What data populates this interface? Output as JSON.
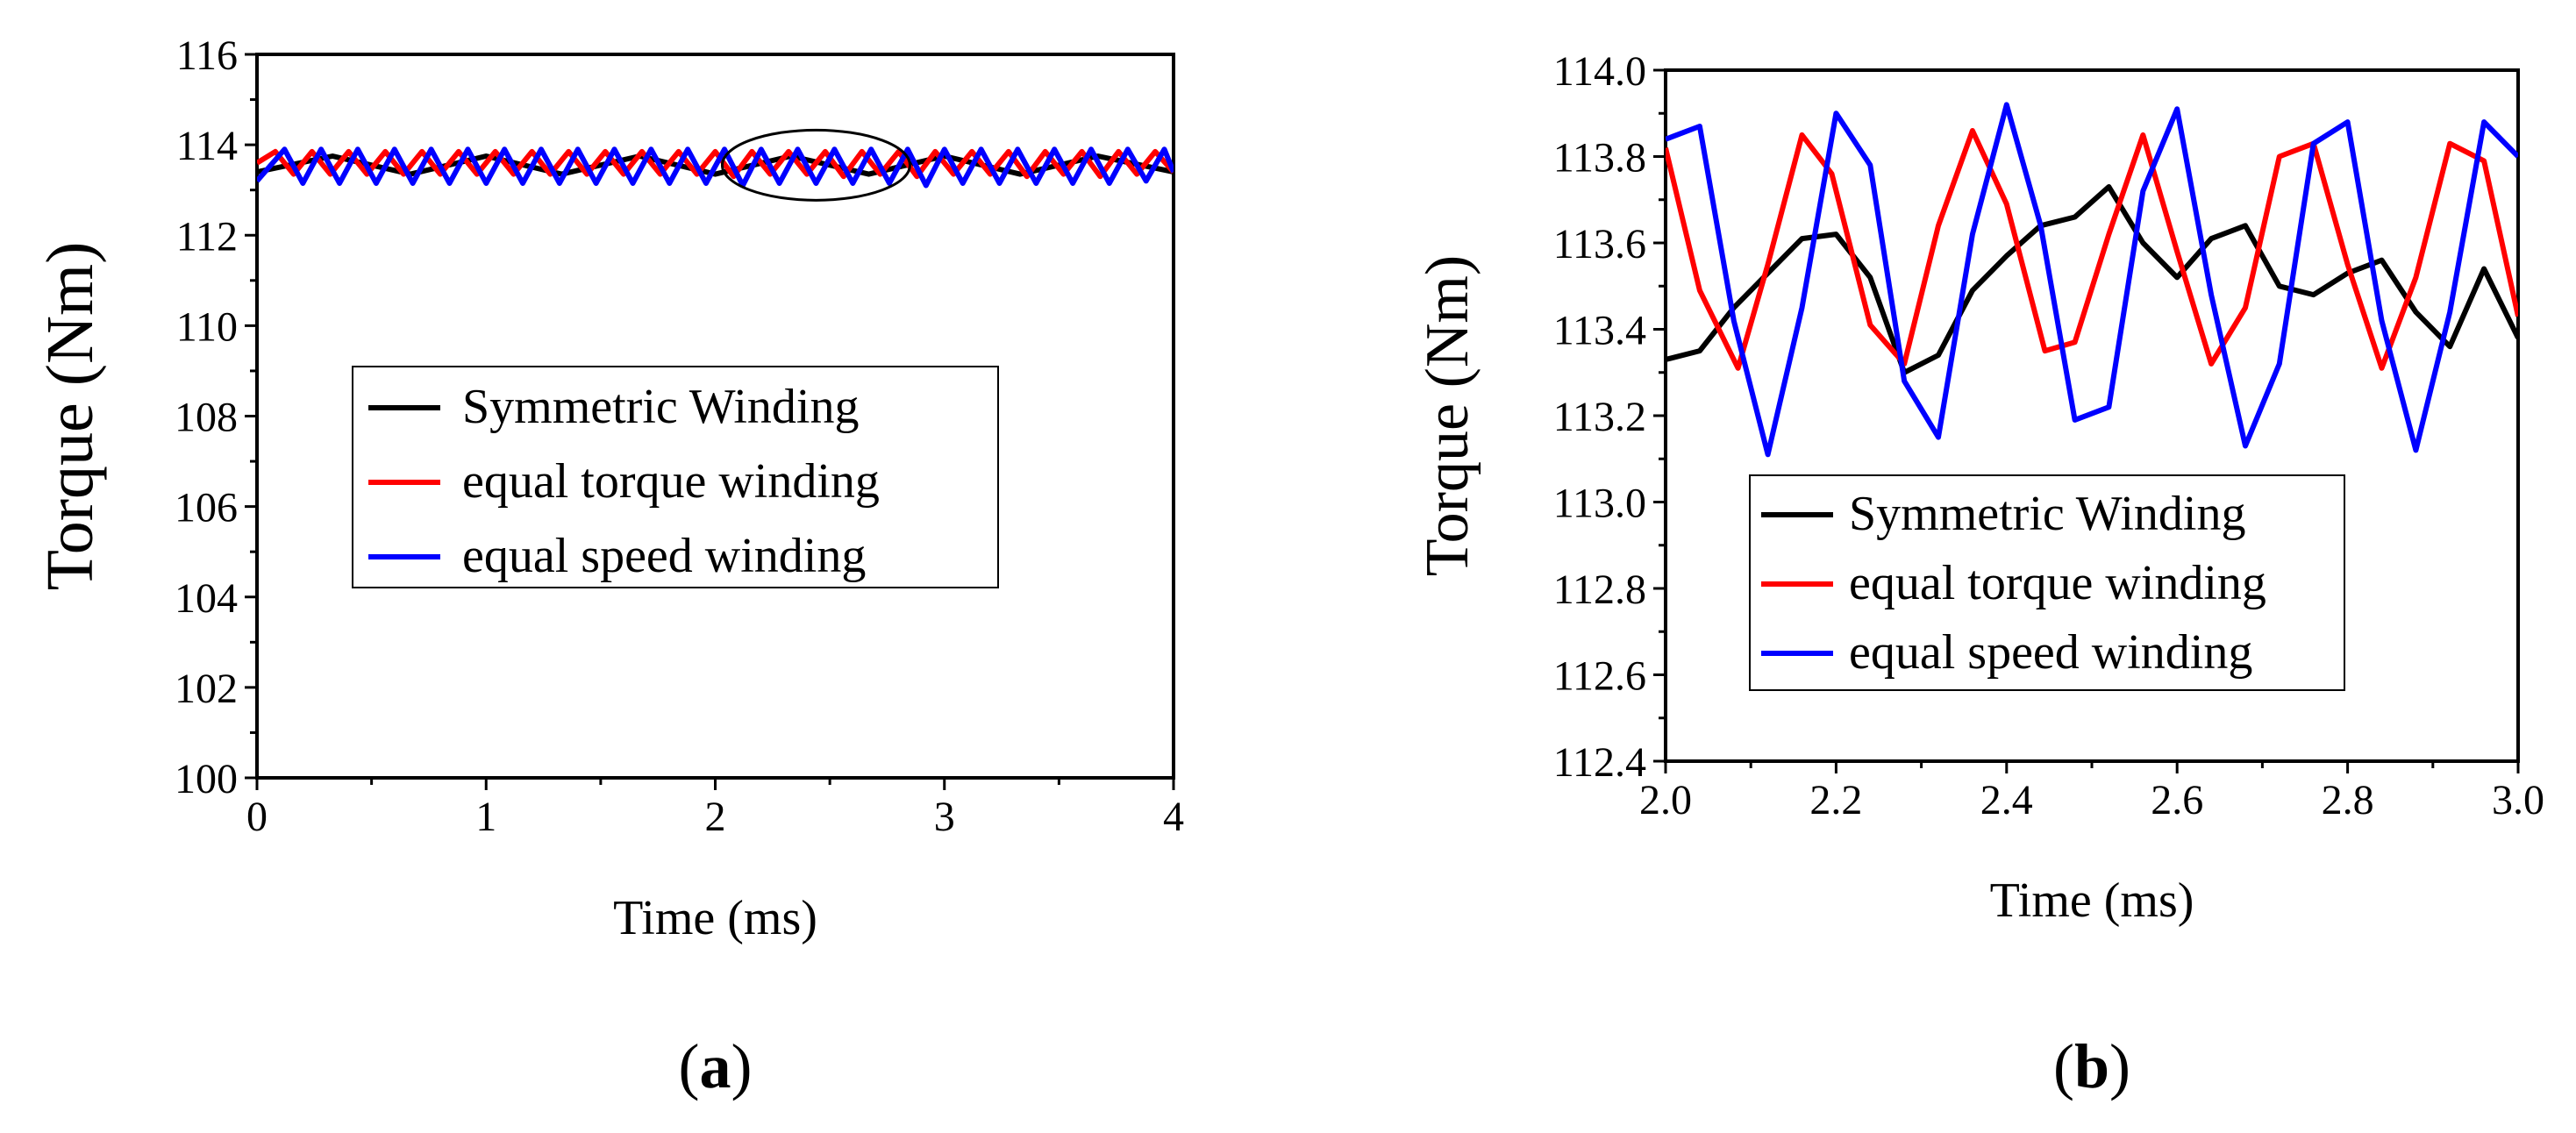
{
  "chart_data": [
    {
      "id": "a",
      "type": "line",
      "panel_label": "(a)",
      "xlabel": "Time (ms)",
      "ylabel": "Torque (Nm)",
      "xlim": [
        0,
        4
      ],
      "ylim": [
        100,
        116
      ],
      "xticks": [
        0,
        1,
        2,
        3,
        4
      ],
      "xtick_labels": [
        "0",
        "1",
        "2",
        "3",
        "4"
      ],
      "yticks": [
        100,
        102,
        104,
        106,
        108,
        110,
        112,
        114,
        116
      ],
      "ytick_labels": [
        "100",
        "102",
        "104",
        "106",
        "108",
        "110",
        "112",
        "114",
        "116"
      ],
      "grid": false,
      "legend_position": "center-left",
      "annotation": "ellipse around 2.1–2.8 ms region",
      "series": [
        {
          "name": "Symmetric Winding",
          "color": "#000000",
          "x": [
            0,
            0.33,
            0.67,
            1.0,
            1.33,
            1.67,
            2.0,
            2.33,
            2.67,
            3.0,
            3.33,
            3.67,
            4.0
          ],
          "y": [
            113.4,
            113.75,
            113.35,
            113.75,
            113.35,
            113.75,
            113.35,
            113.75,
            113.35,
            113.75,
            113.35,
            113.75,
            113.4
          ]
        },
        {
          "name": "equal torque winding",
          "color": "#ff0000",
          "x": [
            0,
            0.08,
            0.16,
            0.24,
            0.32,
            0.4,
            0.48,
            0.56,
            0.64,
            0.72,
            0.8,
            0.88,
            0.96,
            1.04,
            1.12,
            1.2,
            1.28,
            1.36,
            1.44,
            1.52,
            1.6,
            1.68,
            1.76,
            1.84,
            1.92,
            2.0,
            2.08,
            2.16,
            2.24,
            2.32,
            2.4,
            2.48,
            2.56,
            2.64,
            2.72,
            2.8,
            2.88,
            2.96,
            3.04,
            3.12,
            3.2,
            3.28,
            3.36,
            3.44,
            3.52,
            3.6,
            3.68,
            3.76,
            3.84,
            3.92,
            4.0
          ],
          "y": [
            113.6,
            113.85,
            113.35,
            113.85,
            113.35,
            113.85,
            113.35,
            113.85,
            113.35,
            113.85,
            113.35,
            113.85,
            113.35,
            113.85,
            113.35,
            113.85,
            113.35,
            113.85,
            113.35,
            113.85,
            113.35,
            113.85,
            113.35,
            113.85,
            113.35,
            113.85,
            113.3,
            113.85,
            113.35,
            113.85,
            113.35,
            113.85,
            113.3,
            113.85,
            113.35,
            113.85,
            113.3,
            113.85,
            113.35,
            113.85,
            113.35,
            113.85,
            113.3,
            113.85,
            113.35,
            113.85,
            113.3,
            113.85,
            113.35,
            113.85,
            113.4
          ]
        },
        {
          "name": "equal speed winding",
          "color": "#0000ff",
          "x": [
            0,
            0.12,
            0.2,
            0.28,
            0.36,
            0.44,
            0.52,
            0.6,
            0.68,
            0.76,
            0.84,
            0.92,
            1.0,
            1.08,
            1.16,
            1.24,
            1.32,
            1.4,
            1.48,
            1.56,
            1.64,
            1.72,
            1.8,
            1.88,
            1.96,
            2.04,
            2.12,
            2.2,
            2.28,
            2.36,
            2.44,
            2.52,
            2.6,
            2.68,
            2.76,
            2.84,
            2.92,
            3.0,
            3.08,
            3.16,
            3.24,
            3.32,
            3.4,
            3.48,
            3.56,
            3.64,
            3.72,
            3.8,
            3.88,
            3.96,
            4.0
          ],
          "y": [
            113.2,
            113.9,
            113.15,
            113.9,
            113.15,
            113.9,
            113.15,
            113.9,
            113.15,
            113.9,
            113.15,
            113.9,
            113.15,
            113.9,
            113.15,
            113.9,
            113.15,
            113.9,
            113.15,
            113.9,
            113.15,
            113.9,
            113.15,
            113.9,
            113.15,
            113.9,
            113.1,
            113.9,
            113.15,
            113.9,
            113.15,
            113.9,
            113.15,
            113.9,
            113.15,
            113.9,
            113.1,
            113.9,
            113.15,
            113.9,
            113.15,
            113.9,
            113.15,
            113.9,
            113.15,
            113.9,
            113.15,
            113.9,
            113.2,
            113.9,
            113.4
          ]
        }
      ]
    },
    {
      "id": "b",
      "type": "line",
      "panel_label": "(b)",
      "xlabel": "Time (ms)",
      "ylabel": "Torque (Nm)",
      "xlim": [
        2.0,
        3.0
      ],
      "ylim": [
        112.4,
        114.0
      ],
      "xticks": [
        2.0,
        2.2,
        2.4,
        2.6,
        2.8,
        3.0
      ],
      "xtick_labels": [
        "2.0",
        "2.2",
        "2.4",
        "2.6",
        "2.8",
        "3.0"
      ],
      "yticks": [
        112.4,
        112.6,
        112.8,
        113.0,
        113.2,
        113.4,
        113.6,
        113.8,
        114.0
      ],
      "ytick_labels": [
        "112.4",
        "112.6",
        "112.8",
        "113.0",
        "113.2",
        "113.4",
        "113.6",
        "113.8",
        "114.0"
      ],
      "grid": false,
      "legend_position": "bottom-center",
      "series": [
        {
          "name": "Symmetric Winding",
          "color": "#000000",
          "x": [
            2.0,
            2.04,
            2.08,
            2.12,
            2.16,
            2.2,
            2.24,
            2.28,
            2.32,
            2.36,
            2.4,
            2.44,
            2.48,
            2.52,
            2.56,
            2.6,
            2.64,
            2.68,
            2.72,
            2.76,
            2.8,
            2.84,
            2.88,
            2.92,
            2.96,
            3.0
          ],
          "y": [
            113.33,
            113.35,
            113.45,
            113.53,
            113.61,
            113.62,
            113.52,
            113.3,
            113.34,
            113.49,
            113.57,
            113.64,
            113.66,
            113.73,
            113.6,
            113.52,
            113.61,
            113.64,
            113.5,
            113.48,
            113.53,
            113.56,
            113.44,
            113.36,
            113.54,
            113.38
          ]
        },
        {
          "name": "equal torque winding",
          "color": "#ff0000",
          "x": [
            2.0,
            2.04,
            2.085,
            2.12,
            2.16,
            2.195,
            2.24,
            2.28,
            2.32,
            2.36,
            2.4,
            2.445,
            2.48,
            2.52,
            2.56,
            2.6,
            2.64,
            2.68,
            2.72,
            2.76,
            2.8,
            2.84,
            2.88,
            2.92,
            2.96,
            3.0
          ],
          "y": [
            113.82,
            113.49,
            113.31,
            113.55,
            113.85,
            113.76,
            113.41,
            113.32,
            113.64,
            113.86,
            113.69,
            113.35,
            113.37,
            113.62,
            113.85,
            113.58,
            113.32,
            113.45,
            113.8,
            113.83,
            113.55,
            113.31,
            113.52,
            113.83,
            113.79,
            113.43
          ]
        },
        {
          "name": "equal speed winding",
          "color": "#0000ff",
          "x": [
            2.0,
            2.04,
            2.08,
            2.12,
            2.16,
            2.2,
            2.24,
            2.28,
            2.32,
            2.36,
            2.4,
            2.44,
            2.48,
            2.52,
            2.56,
            2.6,
            2.64,
            2.68,
            2.72,
            2.76,
            2.8,
            2.84,
            2.88,
            2.92,
            2.96,
            3.0
          ],
          "y": [
            113.84,
            113.87,
            113.42,
            113.11,
            113.45,
            113.9,
            113.78,
            113.28,
            113.15,
            113.62,
            113.92,
            113.64,
            113.19,
            113.22,
            113.72,
            113.91,
            113.48,
            113.13,
            113.32,
            113.83,
            113.88,
            113.42,
            113.12,
            113.44,
            113.88,
            113.8
          ]
        }
      ]
    }
  ]
}
